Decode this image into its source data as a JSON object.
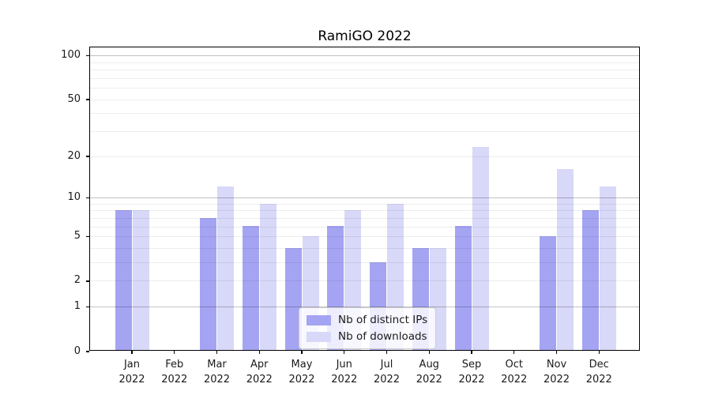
{
  "chart_data": {
    "type": "bar",
    "title": "RamiGO 2022",
    "categories": [
      "Jan",
      "Feb",
      "Mar",
      "Apr",
      "May",
      "Jun",
      "Jul",
      "Aug",
      "Sep",
      "Oct",
      "Nov",
      "Dec"
    ],
    "year_label": "2022",
    "series": [
      {
        "name": "Nb of distinct IPs",
        "color": "#a4a4f2",
        "values": [
          8,
          0,
          7,
          6,
          4,
          6,
          3,
          4,
          6,
          0,
          5,
          8
        ]
      },
      {
        "name": "Nb of downloads",
        "color": "#d8d8f8",
        "values": [
          8,
          0,
          12,
          9,
          5,
          8,
          9,
          4,
          23,
          0,
          16,
          12
        ]
      }
    ],
    "yscale": "log10(1+v)",
    "ylim": [
      0,
      114
    ],
    "ytick_labels": [
      100,
      50,
      20,
      10,
      5,
      2,
      1,
      0
    ],
    "major_gridlines": [
      1,
      10,
      100
    ],
    "minor_gridlines": [
      2,
      3,
      4,
      5,
      6,
      7,
      8,
      9,
      20,
      30,
      40,
      50,
      60,
      70,
      80,
      90
    ],
    "grid": "on",
    "legend_position": "inside-bottom-center",
    "axis_color": "#000000",
    "background_color": "#ffffff"
  }
}
